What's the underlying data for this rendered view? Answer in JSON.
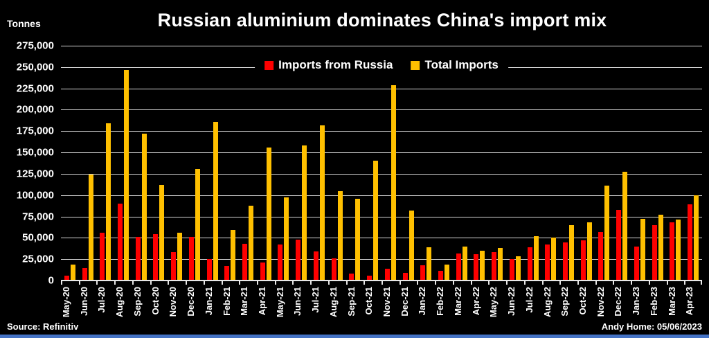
{
  "header": {
    "units_label": "Tonnes"
  },
  "footer": {
    "source": "Source: Refinitiv",
    "credit": "Andy Home: 05/06/2023"
  },
  "colors": {
    "background": "#000000",
    "text": "#ffffff",
    "gridline": "#d9d9d9",
    "russia_red": "#ff0000",
    "total_yellow": "#ffc000",
    "bottom_strip_blue": "#4472c4"
  },
  "chart_data": {
    "type": "bar",
    "title": "Russian aluminium dominates China's import mix",
    "ylabel": "Tonnes",
    "xlabel": "",
    "ylim": [
      0,
      275000
    ],
    "ytick_step": 25000,
    "grid": true,
    "legend_position": "top-center",
    "categories": [
      "May-20",
      "Jun-20",
      "Jul-20",
      "Aug-20",
      "Sep-20",
      "Oct-20",
      "Nov-20",
      "Dec-20",
      "Jan-21",
      "Feb-21",
      "Mar-21",
      "Apr-21",
      "May-21",
      "Jun-21",
      "Jul-21",
      "Aug-21",
      "Sep-21",
      "Oct-21",
      "Nov-21",
      "Dec-21",
      "Jan-22",
      "Feb-22",
      "Mar-22",
      "Apr-22",
      "May-22",
      "Jun-22",
      "Jul-22",
      "Aug-22",
      "Sep-22",
      "Oct-22",
      "Nov-22",
      "Dec-22",
      "Jan-23",
      "Feb-23",
      "Mar-23",
      "Apr-23"
    ],
    "series": [
      {
        "name": "Imports from Russia",
        "color": "#ff0000",
        "values": [
          6000,
          15000,
          56000,
          90000,
          51000,
          54000,
          33000,
          51000,
          25000,
          17000,
          43000,
          21000,
          42000,
          48000,
          34000,
          26000,
          8000,
          6000,
          14000,
          9000,
          18000,
          11000,
          32000,
          31000,
          33000,
          25000,
          39000,
          42000,
          45000,
          47000,
          57000,
          83000,
          40000,
          65000,
          68000,
          89000
        ]
      },
      {
        "name": "Total Imports",
        "color": "#ffc000",
        "values": [
          19000,
          124000,
          184000,
          247000,
          172000,
          112000,
          56000,
          131000,
          186000,
          59000,
          88000,
          156000,
          97000,
          158000,
          182000,
          105000,
          96000,
          140000,
          229000,
          82000,
          39000,
          19000,
          40000,
          35000,
          38000,
          28000,
          52000,
          50000,
          65000,
          68000,
          111000,
          127000,
          72000,
          77000,
          71000,
          100000
        ]
      }
    ]
  }
}
